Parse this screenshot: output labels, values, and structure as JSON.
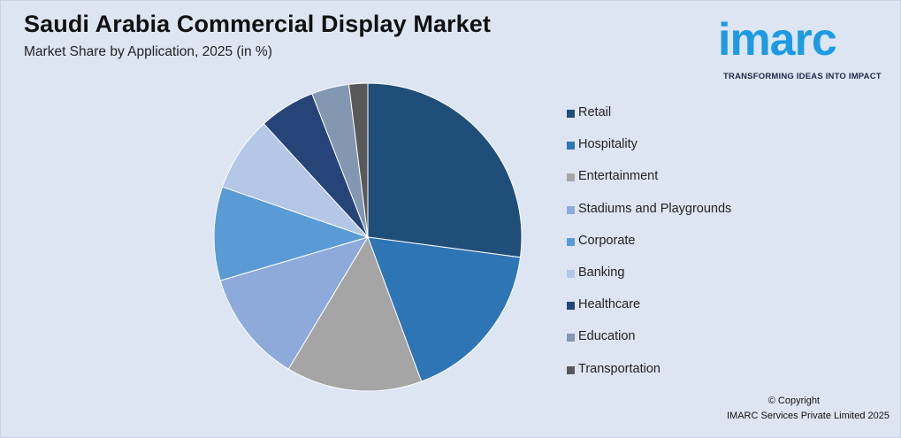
{
  "header": {
    "title": "Saudi Arabia Commercial Display Market",
    "subtitle": "Market Share by Application, 2025 (in %)"
  },
  "logo": {
    "word": "imarc",
    "tagline": "TRANSFORMING IDEAS INTO IMPACT",
    "color": "#1d9be2"
  },
  "footer": {
    "copyright_line1": "© Copyright",
    "copyright_line2": "IMARC Services Private Limited 2025"
  },
  "chart_data": {
    "type": "pie",
    "title": "Saudi Arabia Commercial Display Market",
    "subtitle": "Market Share by Application, 2025 (in %)",
    "legend_position": "right",
    "categories": [
      "Retail",
      "Hospitality",
      "Entertainment",
      "Stadiums and Playgrounds",
      "Corporate",
      "Banking",
      "Healthcare",
      "Education",
      "Transportation"
    ],
    "values": [
      27.5,
      17.5,
      14.5,
      12.0,
      10.0,
      8.0,
      6.0,
      4.0,
      2.0
    ],
    "colors": [
      "#1f4e79",
      "#2e75b6",
      "#a5a5a5",
      "#8eaadb",
      "#5b9bd5",
      "#b4c7e7",
      "#264478",
      "#8497b0",
      "#595959"
    ]
  }
}
